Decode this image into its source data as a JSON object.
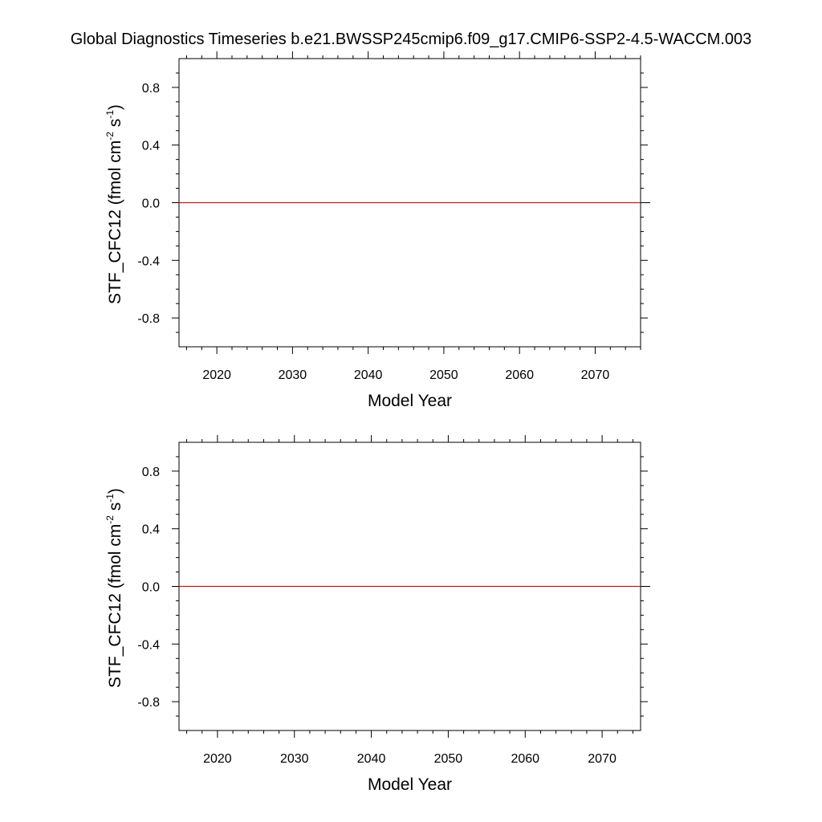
{
  "title": "Global Diagnostics Timeseries b.e21.BWSSP245cmip6.f09_g17.CMIP6-SSP2-4.5-WACCM.003",
  "colors": {
    "series_line": "#b22222",
    "zero_line": "#000000",
    "frame": "#000000"
  },
  "chart_data": [
    {
      "type": "line",
      "title": "",
      "xlabel": "Model Year",
      "ylabel": {
        "base": "STF_CFC12 (fmol cm",
        "sup1": "-2",
        "mid": " s",
        "sup2": "-1",
        "end": ")"
      },
      "xlim": [
        2015,
        2076
      ],
      "ylim": [
        -1.0,
        1.0
      ],
      "xticks": [
        2020,
        2030,
        2040,
        2050,
        2060,
        2070
      ],
      "xtick_labels": [
        "2020",
        "2030",
        "2040",
        "2050",
        "2060",
        "2070"
      ],
      "yticks": [
        0.8,
        0.4,
        0.0,
        -0.4,
        -0.8
      ],
      "ytick_labels": [
        "0.8",
        "0.4",
        "0.0",
        "-0.4",
        "-0.8"
      ],
      "grid": false,
      "series": [
        {
          "x": [
            2015,
            2076
          ],
          "y": [
            0.0,
            0.0
          ]
        }
      ]
    },
    {
      "type": "line",
      "title": "",
      "xlabel": "Model Year",
      "ylabel": {
        "base": "STF_CFC12 (fmol cm",
        "sup1": "-2",
        "mid": " s",
        "sup2": "-1",
        "end": ")"
      },
      "xlim": [
        2015,
        2075
      ],
      "ylim": [
        -1.0,
        1.0
      ],
      "xticks": [
        2020,
        2030,
        2040,
        2050,
        2060,
        2070
      ],
      "xtick_labels": [
        "2020",
        "2030",
        "2040",
        "2050",
        "2060",
        "2070"
      ],
      "yticks": [
        0.8,
        0.4,
        0.0,
        -0.4,
        -0.8
      ],
      "ytick_labels": [
        "0.8",
        "0.4",
        "0.0",
        "-0.4",
        "-0.8"
      ],
      "grid": false,
      "series": [
        {
          "x": [
            2015,
            2075
          ],
          "y": [
            0.0,
            0.0
          ]
        }
      ]
    }
  ]
}
